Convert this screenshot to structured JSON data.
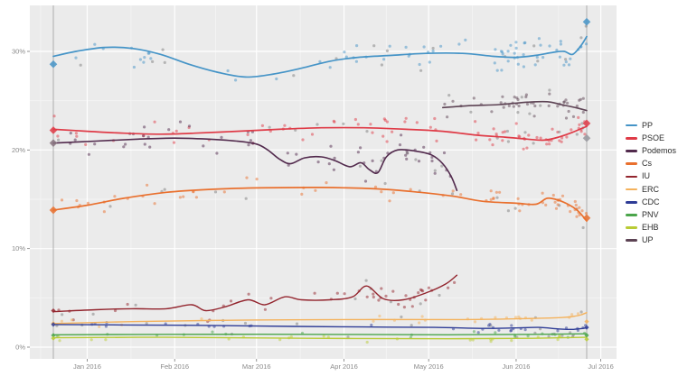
{
  "chart_data": {
    "type": "scatter",
    "title": "",
    "subtitle": "",
    "description": "Opinion polling trend lines with poll scatter points, Dec 2015 election to Jun 2016 election, Spain",
    "panel": {
      "background": "#ebebeb",
      "major_grid": "#ffffff",
      "minor_grid": "#f4f4f4",
      "event_line": "#a6a6a6"
    },
    "axis_text_color": "#8a8a8a",
    "x_axis": {
      "ticks": [
        {
          "day": 12,
          "label": "Jan 2016"
        },
        {
          "day": 43,
          "label": "Feb 2016"
        },
        {
          "day": 72,
          "label": "Mar 2016"
        },
        {
          "day": 103,
          "label": "Apr 2016"
        },
        {
          "day": 133,
          "label": "May 2016"
        },
        {
          "day": 164,
          "label": "Jun 2016"
        },
        {
          "day": 194,
          "label": "Jul 2016"
        }
      ],
      "minor_days": [
        -4.5,
        27.5,
        57.5,
        87.5,
        118,
        148.5,
        179
      ]
    },
    "y_axis": {
      "ticks": [
        {
          "pct": 0,
          "label": "0%"
        },
        {
          "pct": 10,
          "label": "10%"
        },
        {
          "pct": 20,
          "label": "20%"
        },
        {
          "pct": 30,
          "label": "30%"
        }
      ],
      "minor_pcts": [
        5,
        15,
        25
      ]
    },
    "events": [
      {
        "name": "2015-general-election",
        "day": 0
      },
      {
        "name": "2016-general-election",
        "day": 189
      }
    ],
    "series": [
      {
        "name": "PP",
        "color": "#4594c7",
        "width": 1.7,
        "points": [
          [
            0,
            29.5
          ],
          [
            8,
            30.0
          ],
          [
            18,
            30.4
          ],
          [
            28,
            30.3
          ],
          [
            38,
            29.7
          ],
          [
            48,
            28.7
          ],
          [
            58,
            27.9
          ],
          [
            68,
            27.4
          ],
          [
            78,
            27.7
          ],
          [
            88,
            28.3
          ],
          [
            98,
            29.0
          ],
          [
            108,
            29.4
          ],
          [
            120,
            29.6
          ],
          [
            132,
            29.8
          ],
          [
            145,
            29.8
          ],
          [
            156,
            29.5
          ],
          [
            164,
            29.4
          ],
          [
            171,
            29.6
          ],
          [
            177,
            29.9
          ],
          [
            181,
            30.0
          ],
          [
            184,
            29.7
          ],
          [
            187,
            30.6
          ],
          [
            189,
            31.5
          ]
        ],
        "scatter": {
          "n": 90,
          "sd": 1.3
        }
      },
      {
        "name": "PSOE",
        "color": "#df3b47",
        "width": 1.7,
        "points": [
          [
            0,
            22.1
          ],
          [
            12,
            21.9
          ],
          [
            25,
            21.7
          ],
          [
            38,
            21.6
          ],
          [
            50,
            21.7
          ],
          [
            65,
            21.9
          ],
          [
            80,
            22.1
          ],
          [
            95,
            22.25
          ],
          [
            110,
            22.25
          ],
          [
            125,
            22.1
          ],
          [
            138,
            21.9
          ],
          [
            150,
            21.5
          ],
          [
            160,
            21.3
          ],
          [
            168,
            21.1
          ],
          [
            174,
            21.0
          ],
          [
            179,
            21.3
          ],
          [
            184,
            21.8
          ],
          [
            189,
            22.4
          ]
        ],
        "scatter": {
          "n": 95,
          "sd": 1.0
        }
      },
      {
        "name": "Podemos",
        "color": "#522a4d",
        "width": 1.6,
        "points": [
          [
            0,
            20.7
          ],
          [
            15,
            20.9
          ],
          [
            30,
            21.1
          ],
          [
            43,
            21.2
          ],
          [
            55,
            21.1
          ],
          [
            65,
            20.9
          ],
          [
            72,
            20.6
          ],
          [
            76,
            20.0
          ],
          [
            80,
            19.1
          ],
          [
            84,
            18.6
          ],
          [
            89,
            19.2
          ],
          [
            95,
            19.3
          ],
          [
            100,
            18.9
          ],
          [
            105,
            18.3
          ],
          [
            109,
            18.7
          ],
          [
            112,
            18.0
          ],
          [
            115,
            17.7
          ],
          [
            118,
            19.3
          ],
          [
            122,
            20.0
          ],
          [
            128,
            19.9
          ],
          [
            134,
            19.5
          ],
          [
            138,
            18.6
          ],
          [
            141,
            17.3
          ],
          [
            143,
            15.9
          ]
        ],
        "scatter": {
          "n": 65,
          "sd": 1.2
        }
      },
      {
        "name": "Cs",
        "color": "#e9702e",
        "width": 1.7,
        "points": [
          [
            0,
            13.9
          ],
          [
            12,
            14.4
          ],
          [
            25,
            15.1
          ],
          [
            40,
            15.7
          ],
          [
            55,
            16.0
          ],
          [
            72,
            16.15
          ],
          [
            95,
            16.2
          ],
          [
            115,
            16.05
          ],
          [
            130,
            15.7
          ],
          [
            142,
            15.3
          ],
          [
            152,
            14.8
          ],
          [
            164,
            14.6
          ],
          [
            171,
            14.5
          ],
          [
            175,
            15.1
          ],
          [
            179,
            14.9
          ],
          [
            183,
            14.4
          ],
          [
            186,
            13.8
          ],
          [
            189,
            12.8
          ]
        ],
        "scatter": {
          "n": 80,
          "sd": 0.9
        }
      },
      {
        "name": "IU",
        "color": "#93252e",
        "width": 1.4,
        "points": [
          [
            0,
            3.6
          ],
          [
            15,
            3.8
          ],
          [
            28,
            3.9
          ],
          [
            40,
            3.9
          ],
          [
            49,
            4.3
          ],
          [
            54,
            3.7
          ],
          [
            61,
            4.1
          ],
          [
            69,
            4.8
          ],
          [
            75,
            4.3
          ],
          [
            82,
            5.1
          ],
          [
            88,
            4.8
          ],
          [
            98,
            4.8
          ],
          [
            106,
            5.1
          ],
          [
            111,
            6.2
          ],
          [
            117,
            4.9
          ],
          [
            124,
            4.8
          ],
          [
            132,
            5.5
          ],
          [
            139,
            6.4
          ],
          [
            143,
            7.3
          ]
        ],
        "scatter": {
          "n": 50,
          "sd": 0.8
        }
      },
      {
        "name": "ERC",
        "color": "#f4b25c",
        "width": 1.4,
        "points": [
          [
            0,
            2.4
          ],
          [
            30,
            2.6
          ],
          [
            70,
            2.75
          ],
          [
            110,
            2.8
          ],
          [
            145,
            2.8
          ],
          [
            168,
            2.9
          ],
          [
            180,
            3.0
          ],
          [
            186,
            3.2
          ],
          [
            189,
            3.5
          ]
        ],
        "scatter": {
          "n": 30,
          "sd": 0.35
        }
      },
      {
        "name": "CDC",
        "color": "#2e3c96",
        "width": 1.4,
        "points": [
          [
            0,
            2.3
          ],
          [
            25,
            2.25
          ],
          [
            55,
            2.2
          ],
          [
            85,
            2.1
          ],
          [
            110,
            2.05
          ],
          [
            135,
            2.0
          ],
          [
            152,
            1.9
          ],
          [
            163,
            1.95
          ],
          [
            172,
            2.0
          ],
          [
            179,
            1.85
          ],
          [
            184,
            1.8
          ],
          [
            189,
            1.95
          ]
        ],
        "scatter": {
          "n": 38,
          "sd": 0.3
        }
      },
      {
        "name": "PNV",
        "color": "#4ba54b",
        "width": 1.4,
        "points": [
          [
            0,
            1.25
          ],
          [
            40,
            1.3
          ],
          [
            90,
            1.3
          ],
          [
            140,
            1.25
          ],
          [
            170,
            1.3
          ],
          [
            189,
            1.35
          ]
        ],
        "scatter": {
          "n": 26,
          "sd": 0.25
        }
      },
      {
        "name": "EHB",
        "color": "#b9cb35",
        "width": 1.4,
        "points": [
          [
            0,
            0.95
          ],
          [
            40,
            1.0
          ],
          [
            90,
            0.9
          ],
          [
            140,
            0.85
          ],
          [
            170,
            0.9
          ],
          [
            189,
            1.0
          ]
        ],
        "scatter": {
          "n": 26,
          "sd": 0.25
        }
      },
      {
        "name": "UP",
        "color": "#5d4354",
        "width": 1.6,
        "points": [
          [
            138,
            24.3
          ],
          [
            148,
            24.5
          ],
          [
            158,
            24.6
          ],
          [
            168,
            24.85
          ],
          [
            175,
            24.9
          ],
          [
            180,
            24.6
          ],
          [
            185,
            24.3
          ],
          [
            189,
            24.0
          ]
        ],
        "scatter": {
          "n": 50,
          "sd": 1.0
        }
      }
    ],
    "elections": [
      {
        "day": 0,
        "results": {
          "PP": 28.7,
          "PSOE": 22.0,
          "Podemos": 20.7,
          "Cs": 13.9,
          "IU": 3.7,
          "ERC": 2.4,
          "CDC": 2.3,
          "PNV": 1.2,
          "EHB": 0.9
        }
      },
      {
        "day": 189,
        "results": {
          "PP": 33.0,
          "PSOE": 22.7,
          "UP": 21.2,
          "Cs": 13.1,
          "ERC": 2.6,
          "CDC": 2.0,
          "PNV": 1.2,
          "EHB": 0.8
        }
      }
    ],
    "marker_color_overrides": {
      "Podemos@0": "#87737f",
      "UP@189": "#97979c"
    },
    "scatter_gray": "#7e7e7e",
    "legend_position": "right"
  }
}
